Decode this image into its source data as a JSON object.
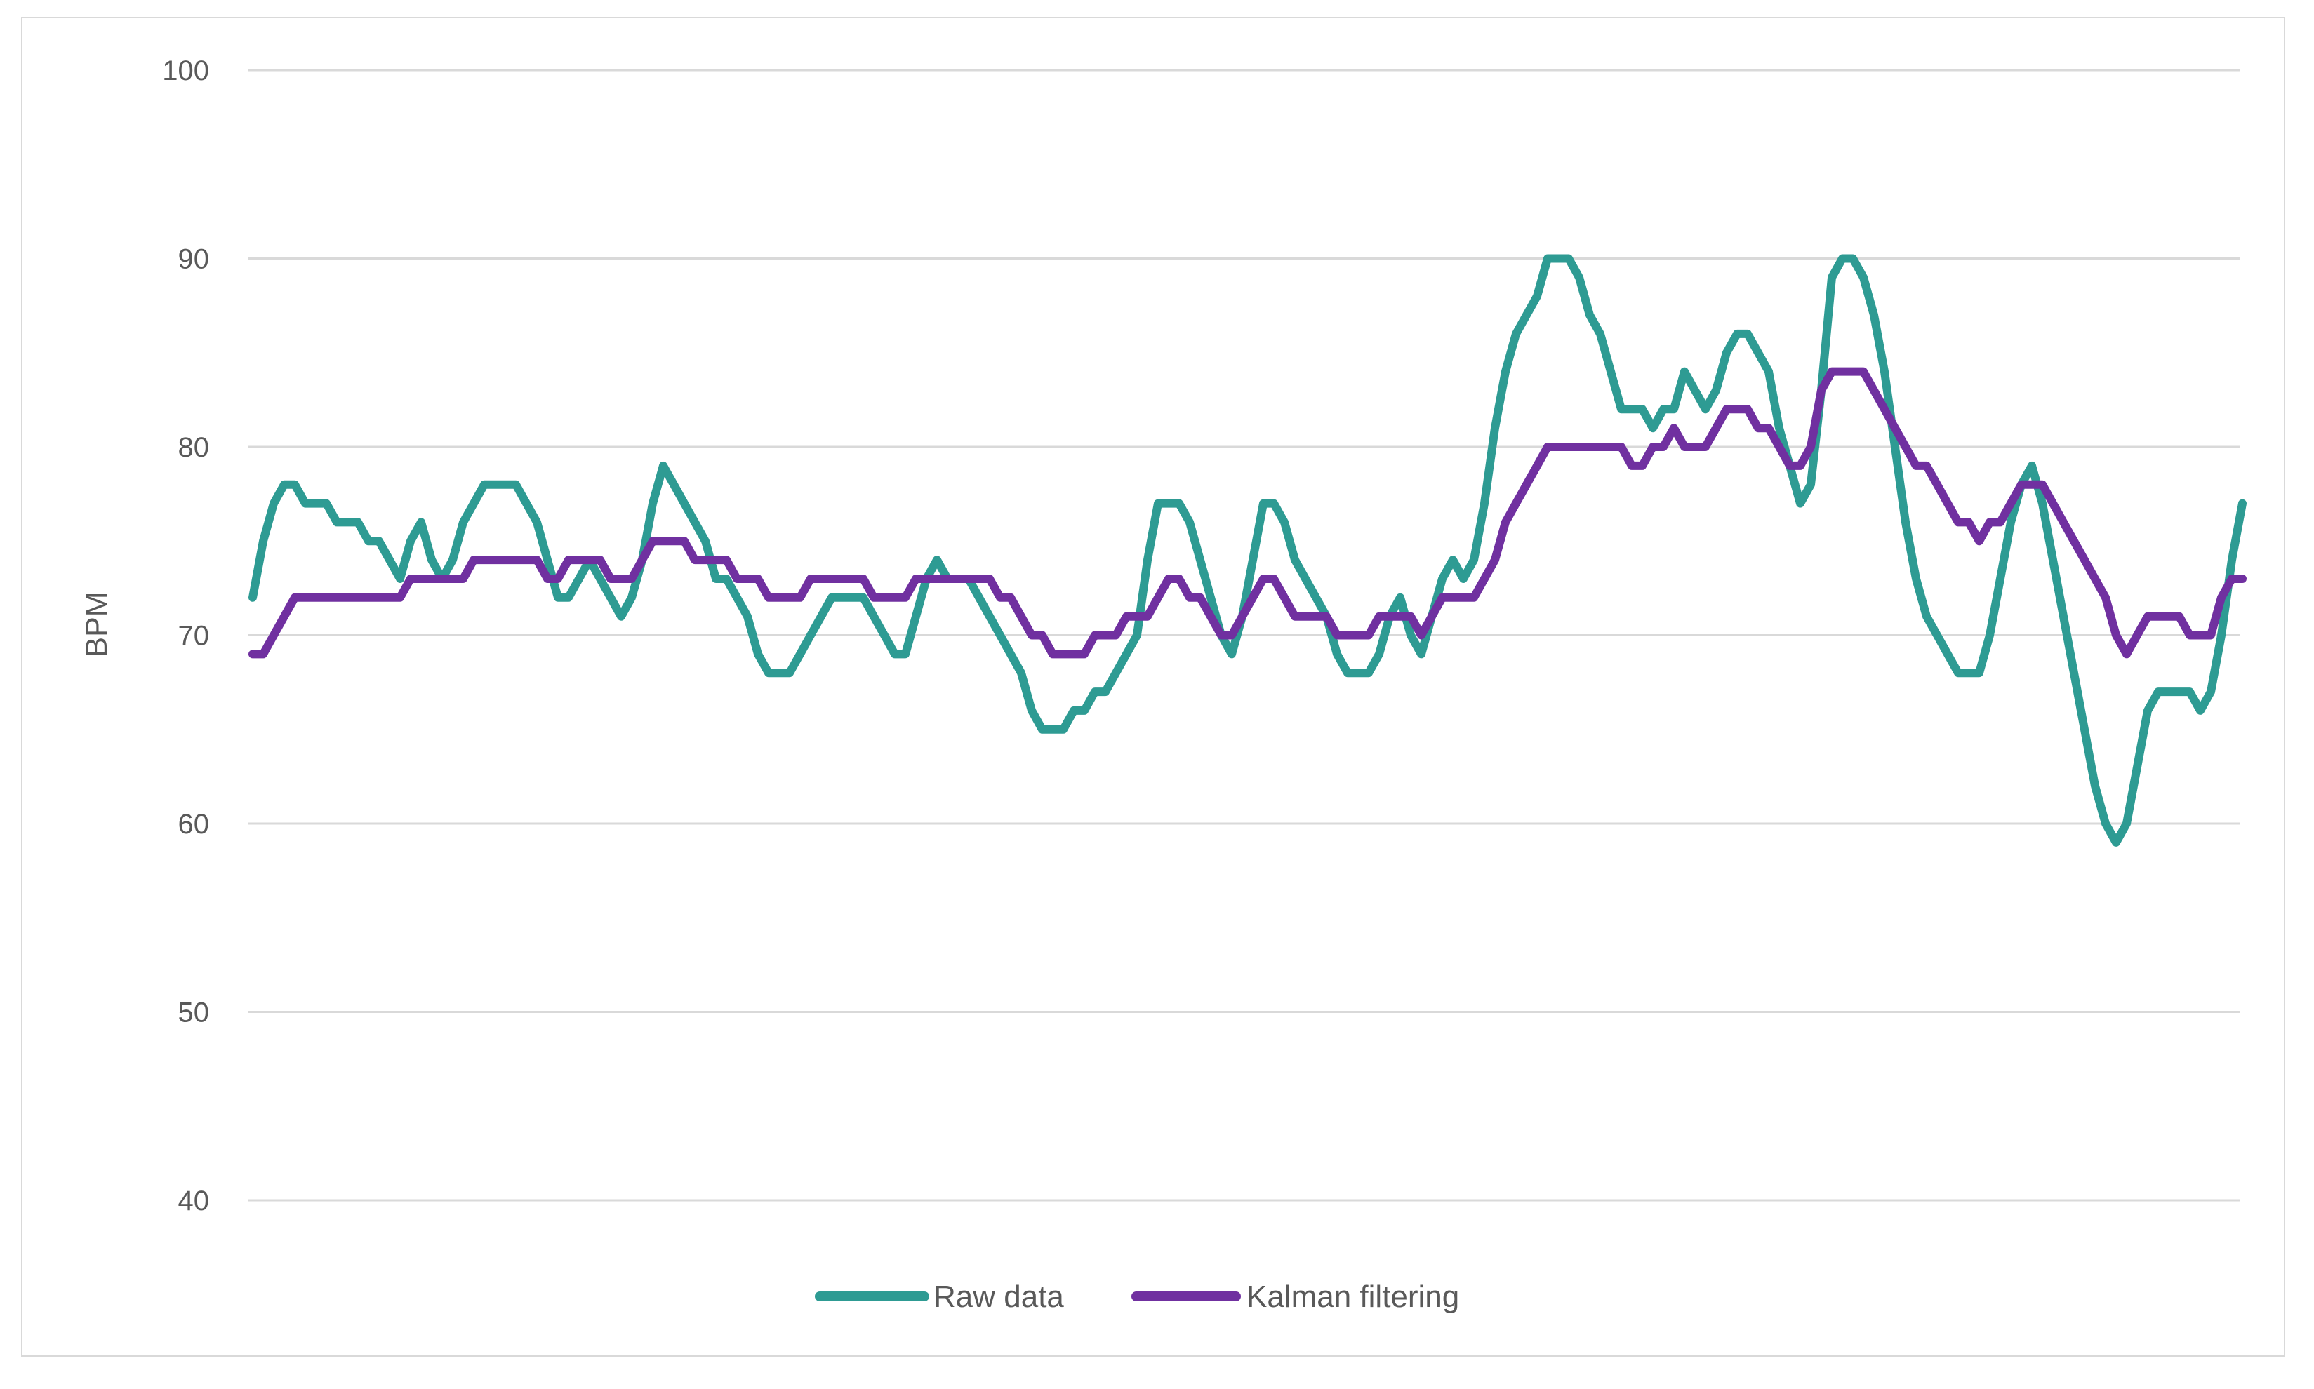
{
  "figure": {
    "background": "#ffffff",
    "frame_border_color": "#d9d9d9"
  },
  "chart_data": {
    "type": "line",
    "title": "",
    "xlabel": "",
    "ylabel": "BPM",
    "ylim": [
      40,
      100
    ],
    "yticks": [
      100,
      90,
      80,
      70,
      60,
      50,
      40
    ],
    "grid": "horizontal-only",
    "gridline_color": "#d9d9d9",
    "tick_label_color": "#595959",
    "axis_title_color": "#595959",
    "legend_position": "bottom-center",
    "legend_text_color": "#595959",
    "series": [
      {
        "name": "Raw data",
        "color": "#2e9b93",
        "values": [
          72,
          75,
          77,
          78,
          78,
          77,
          77,
          77,
          76,
          76,
          76,
          75,
          75,
          74,
          73,
          75,
          76,
          74,
          73,
          74,
          76,
          77,
          78,
          78,
          78,
          78,
          77,
          76,
          74,
          72,
          72,
          73,
          74,
          73,
          72,
          71,
          72,
          74,
          77,
          79,
          78,
          77,
          76,
          75,
          73,
          73,
          72,
          71,
          69,
          68,
          68,
          68,
          69,
          70,
          71,
          72,
          72,
          72,
          72,
          71,
          70,
          69,
          69,
          71,
          73,
          74,
          73,
          73,
          73,
          72,
          71,
          70,
          69,
          68,
          66,
          65,
          65,
          65,
          66,
          66,
          67,
          67,
          68,
          69,
          70,
          74,
          77,
          77,
          77,
          76,
          74,
          72,
          70,
          69,
          71,
          74,
          77,
          77,
          76,
          74,
          73,
          72,
          71,
          69,
          68,
          68,
          68,
          69,
          71,
          72,
          70,
          69,
          71,
          73,
          74,
          73,
          74,
          77,
          81,
          84,
          86,
          87,
          88,
          90,
          90,
          90,
          89,
          87,
          86,
          84,
          82,
          82,
          82,
          81,
          82,
          82,
          84,
          83,
          82,
          83,
          85,
          86,
          86,
          85,
          84,
          81,
          79,
          77,
          78,
          83,
          89,
          90,
          90,
          89,
          87,
          84,
          80,
          76,
          73,
          71,
          70,
          69,
          68,
          68,
          68,
          70,
          73,
          76,
          78,
          79,
          77,
          74,
          71,
          68,
          65,
          62,
          60,
          59,
          60,
          63,
          66,
          67,
          67,
          67,
          67,
          66,
          67,
          70,
          74,
          77
        ]
      },
      {
        "name": "Kalman filtering",
        "color": "#7030a0",
        "values": [
          69,
          69,
          70,
          71,
          72,
          72,
          72,
          72,
          72,
          72,
          72,
          72,
          72,
          72,
          72,
          73,
          73,
          73,
          73,
          73,
          73,
          74,
          74,
          74,
          74,
          74,
          74,
          74,
          73,
          73,
          74,
          74,
          74,
          74,
          73,
          73,
          73,
          74,
          75,
          75,
          75,
          75,
          74,
          74,
          74,
          74,
          73,
          73,
          73,
          72,
          72,
          72,
          72,
          73,
          73,
          73,
          73,
          73,
          73,
          72,
          72,
          72,
          72,
          73,
          73,
          73,
          73,
          73,
          73,
          73,
          73,
          72,
          72,
          71,
          70,
          70,
          69,
          69,
          69,
          69,
          70,
          70,
          70,
          71,
          71,
          71,
          72,
          73,
          73,
          72,
          72,
          71,
          70,
          70,
          71,
          72,
          73,
          73,
          72,
          71,
          71,
          71,
          71,
          70,
          70,
          70,
          70,
          71,
          71,
          71,
          71,
          70,
          71,
          72,
          72,
          72,
          72,
          73,
          74,
          76,
          77,
          78,
          79,
          80,
          80,
          80,
          80,
          80,
          80,
          80,
          80,
          79,
          79,
          80,
          80,
          81,
          80,
          80,
          80,
          81,
          82,
          82,
          82,
          81,
          81,
          80,
          79,
          79,
          80,
          83,
          84,
          84,
          84,
          84,
          83,
          82,
          81,
          80,
          79,
          79,
          78,
          77,
          76,
          76,
          75,
          76,
          76,
          77,
          78,
          78,
          78,
          77,
          76,
          75,
          74,
          73,
          72,
          70,
          69,
          70,
          71,
          71,
          71,
          71,
          70,
          70,
          70,
          72,
          73,
          73
        ]
      }
    ]
  },
  "legend": {
    "items": [
      {
        "label": "Raw data",
        "swatch": "teal-line-swatch"
      },
      {
        "label": "Kalman filtering",
        "swatch": "purple-line-swatch"
      }
    ]
  }
}
